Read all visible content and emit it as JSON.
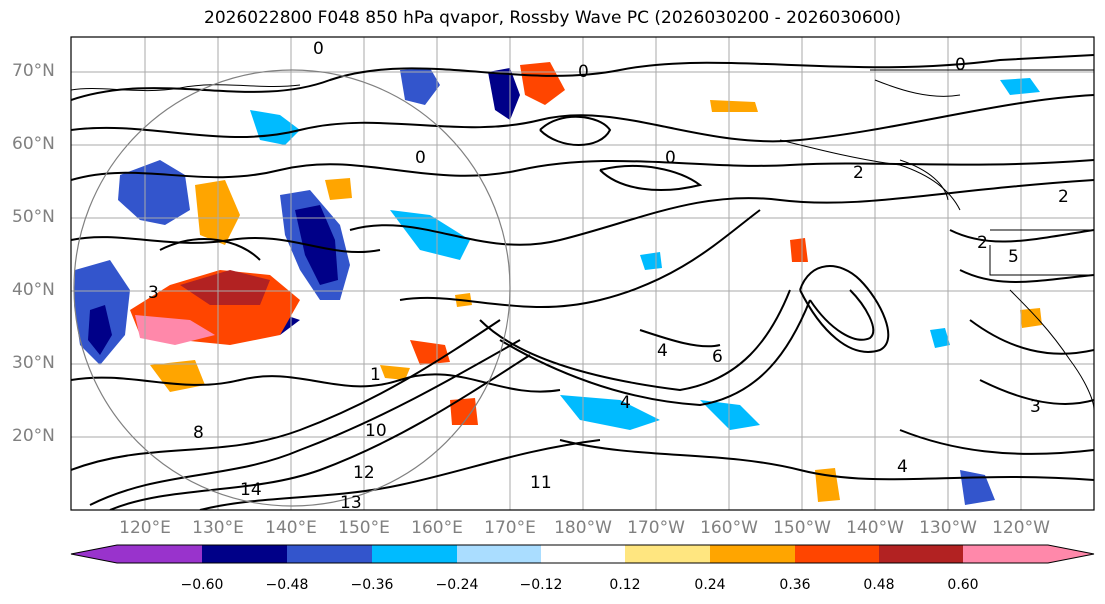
{
  "title": "2026022800 F048 850 hPa qvapor, Rossby Wave PC (2026030200 - 2026030600)",
  "latitude_labels": [
    "70°N",
    "60°N",
    "50°N",
    "40°N",
    "30°N",
    "20°N"
  ],
  "longitude_labels": [
    "120°E",
    "130°E",
    "140°E",
    "150°E",
    "160°E",
    "170°E",
    "180°W",
    "170°W",
    "160°W",
    "150°W",
    "140°W",
    "130°W",
    "120°W"
  ],
  "colorbar": {
    "ticks": [
      "−0.60",
      "−0.48",
      "−0.36",
      "−0.24",
      "−0.12",
      "0.12",
      "0.24",
      "0.36",
      "0.48",
      "0.60"
    ],
    "colors": [
      "#9933cc",
      "#000088",
      "#3355cc",
      "#00bbff",
      "#aaddff",
      "#ffffff",
      "#ffe680",
      "#ffa500",
      "#ff4500",
      "#b22222",
      "#ff88aa"
    ]
  },
  "contour_labels": [
    "0",
    "0",
    "0",
    "0",
    "0",
    "2",
    "2",
    "2",
    "3",
    "3",
    "4",
    "4",
    "4",
    "6",
    "10",
    "12",
    "13",
    "14",
    "1",
    "5",
    "8",
    "11"
  ]
}
